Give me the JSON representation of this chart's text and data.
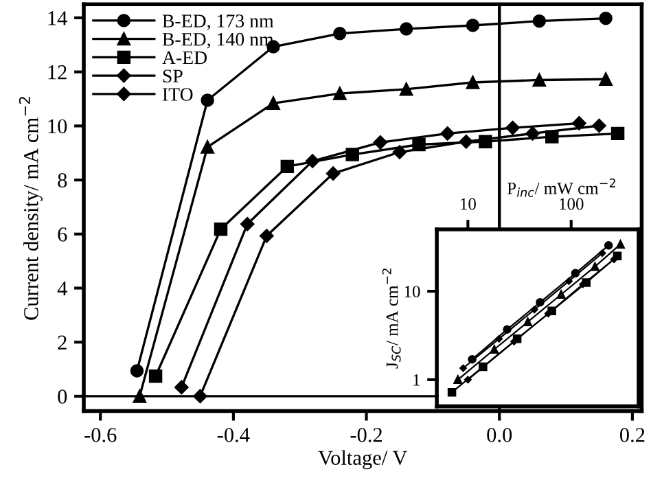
{
  "chart_data": [
    {
      "type": "line",
      "xlabel": "Voltage/ V",
      "ylabel": "Current density/ mA cm$^{−2}$",
      "xlim": [
        -0.625,
        0.214
      ],
      "ylim": [
        -0.55,
        14.5
      ],
      "xticks": [
        {
          "value": -0.6,
          "label": "-0.6"
        },
        {
          "value": -0.4,
          "label": "-0.4"
        },
        {
          "value": -0.2,
          "label": "-0.2"
        },
        {
          "value": 0,
          "label": "0.0"
        },
        {
          "value": 0.2,
          "label": "0.2"
        }
      ],
      "yticks": [
        0,
        2,
        4,
        6,
        8,
        10,
        12,
        14
      ],
      "grid": false,
      "legend": "top left",
      "line_style": "solid",
      "ref_lines": [
        {
          "axis": "y",
          "value": 0,
          "color": "#000000"
        },
        {
          "axis": "x",
          "value": 0,
          "color": "#000000"
        }
      ],
      "series": [
        {
          "name": "B-ED, 173 nm",
          "color": "#000000",
          "marker": "circle",
          "x": [
            -0.545,
            -0.439,
            -0.34,
            -0.24,
            -0.14,
            -0.04,
            0.06,
            0.16
          ],
          "values": [
            0.94,
            10.95,
            12.93,
            13.42,
            13.59,
            13.72,
            13.88,
            13.98
          ]
        },
        {
          "name": "B-ED, 140 nm",
          "color": "#000000",
          "marker": "triangle",
          "x": [
            -0.541,
            -0.439,
            -0.34,
            -0.24,
            -0.14,
            -0.04,
            0.06,
            0.16
          ],
          "values": [
            0.0,
            9.22,
            10.84,
            11.2,
            11.36,
            11.61,
            11.7,
            11.73
          ]
        },
        {
          "name": "A-ED",
          "color": "#000000",
          "marker": "square",
          "x": [
            -0.517,
            -0.419,
            -0.319,
            -0.221,
            -0.121,
            -0.021,
            0.079,
            0.178
          ],
          "values": [
            0.74,
            6.18,
            8.5,
            8.94,
            9.31,
            9.42,
            9.6,
            9.72
          ]
        },
        {
          "name": "SP",
          "color": "#000000",
          "marker": "diamond",
          "x": [
            -0.478,
            -0.379,
            -0.281,
            -0.179,
            -0.078,
            0.02,
            0.12
          ],
          "values": [
            0.33,
            6.37,
            8.7,
            9.39,
            9.72,
            9.93,
            10.1
          ]
        },
        {
          "name": "ITO",
          "color": "#000000",
          "marker": "diamond",
          "x": [
            -0.45,
            -0.35,
            -0.25,
            -0.15,
            -0.05,
            0.05,
            0.15
          ],
          "values": [
            0.0,
            5.93,
            8.24,
            9.03,
            9.42,
            9.72,
            10.01
          ]
        }
      ]
    },
    {
      "type": "line",
      "xlabel": "P$_{inc}$/ mW cm$^{−2}$",
      "ylabel": "J$_{SC}$/ mA cm$^{−2}$",
      "log": "xy",
      "xlim": [
        5,
        450
      ],
      "ylim": [
        0.5,
        50
      ],
      "xticks": [
        10,
        100
      ],
      "yticks": [
        1,
        10
      ],
      "grid": false,
      "legend": false,
      "line_style": "solid",
      "series": [
        {
          "color": "#000000",
          "marker": "circle",
          "x": [
            11,
            24,
            50,
            110,
            230
          ],
          "values": [
            1.7,
            3.7,
            7.5,
            16,
            33
          ]
        },
        {
          "color": "#000000",
          "marker": "triangle",
          "x": [
            8,
            18,
            38,
            80,
            170,
            300
          ],
          "values": [
            1.0,
            2.2,
            4.5,
            9.2,
            19,
            34
          ]
        },
        {
          "color": "#000000",
          "marker": "square",
          "x": [
            7,
            14,
            30,
            65,
            140,
            280
          ],
          "values": [
            0.72,
            1.4,
            2.9,
            6.0,
            12.5,
            25
          ]
        },
        {
          "color": "#000000",
          "marker": "diamond",
          "x": [
            9,
            20,
            44,
            95,
            200
          ],
          "values": [
            1.35,
            2.9,
            6.2,
            13,
            27
          ]
        },
        {
          "color": "#000000",
          "marker": "diamond",
          "x": [
            10,
            28,
            60,
            130,
            260
          ],
          "values": [
            1.0,
            2.7,
            5.6,
            12,
            23
          ]
        }
      ]
    }
  ]
}
